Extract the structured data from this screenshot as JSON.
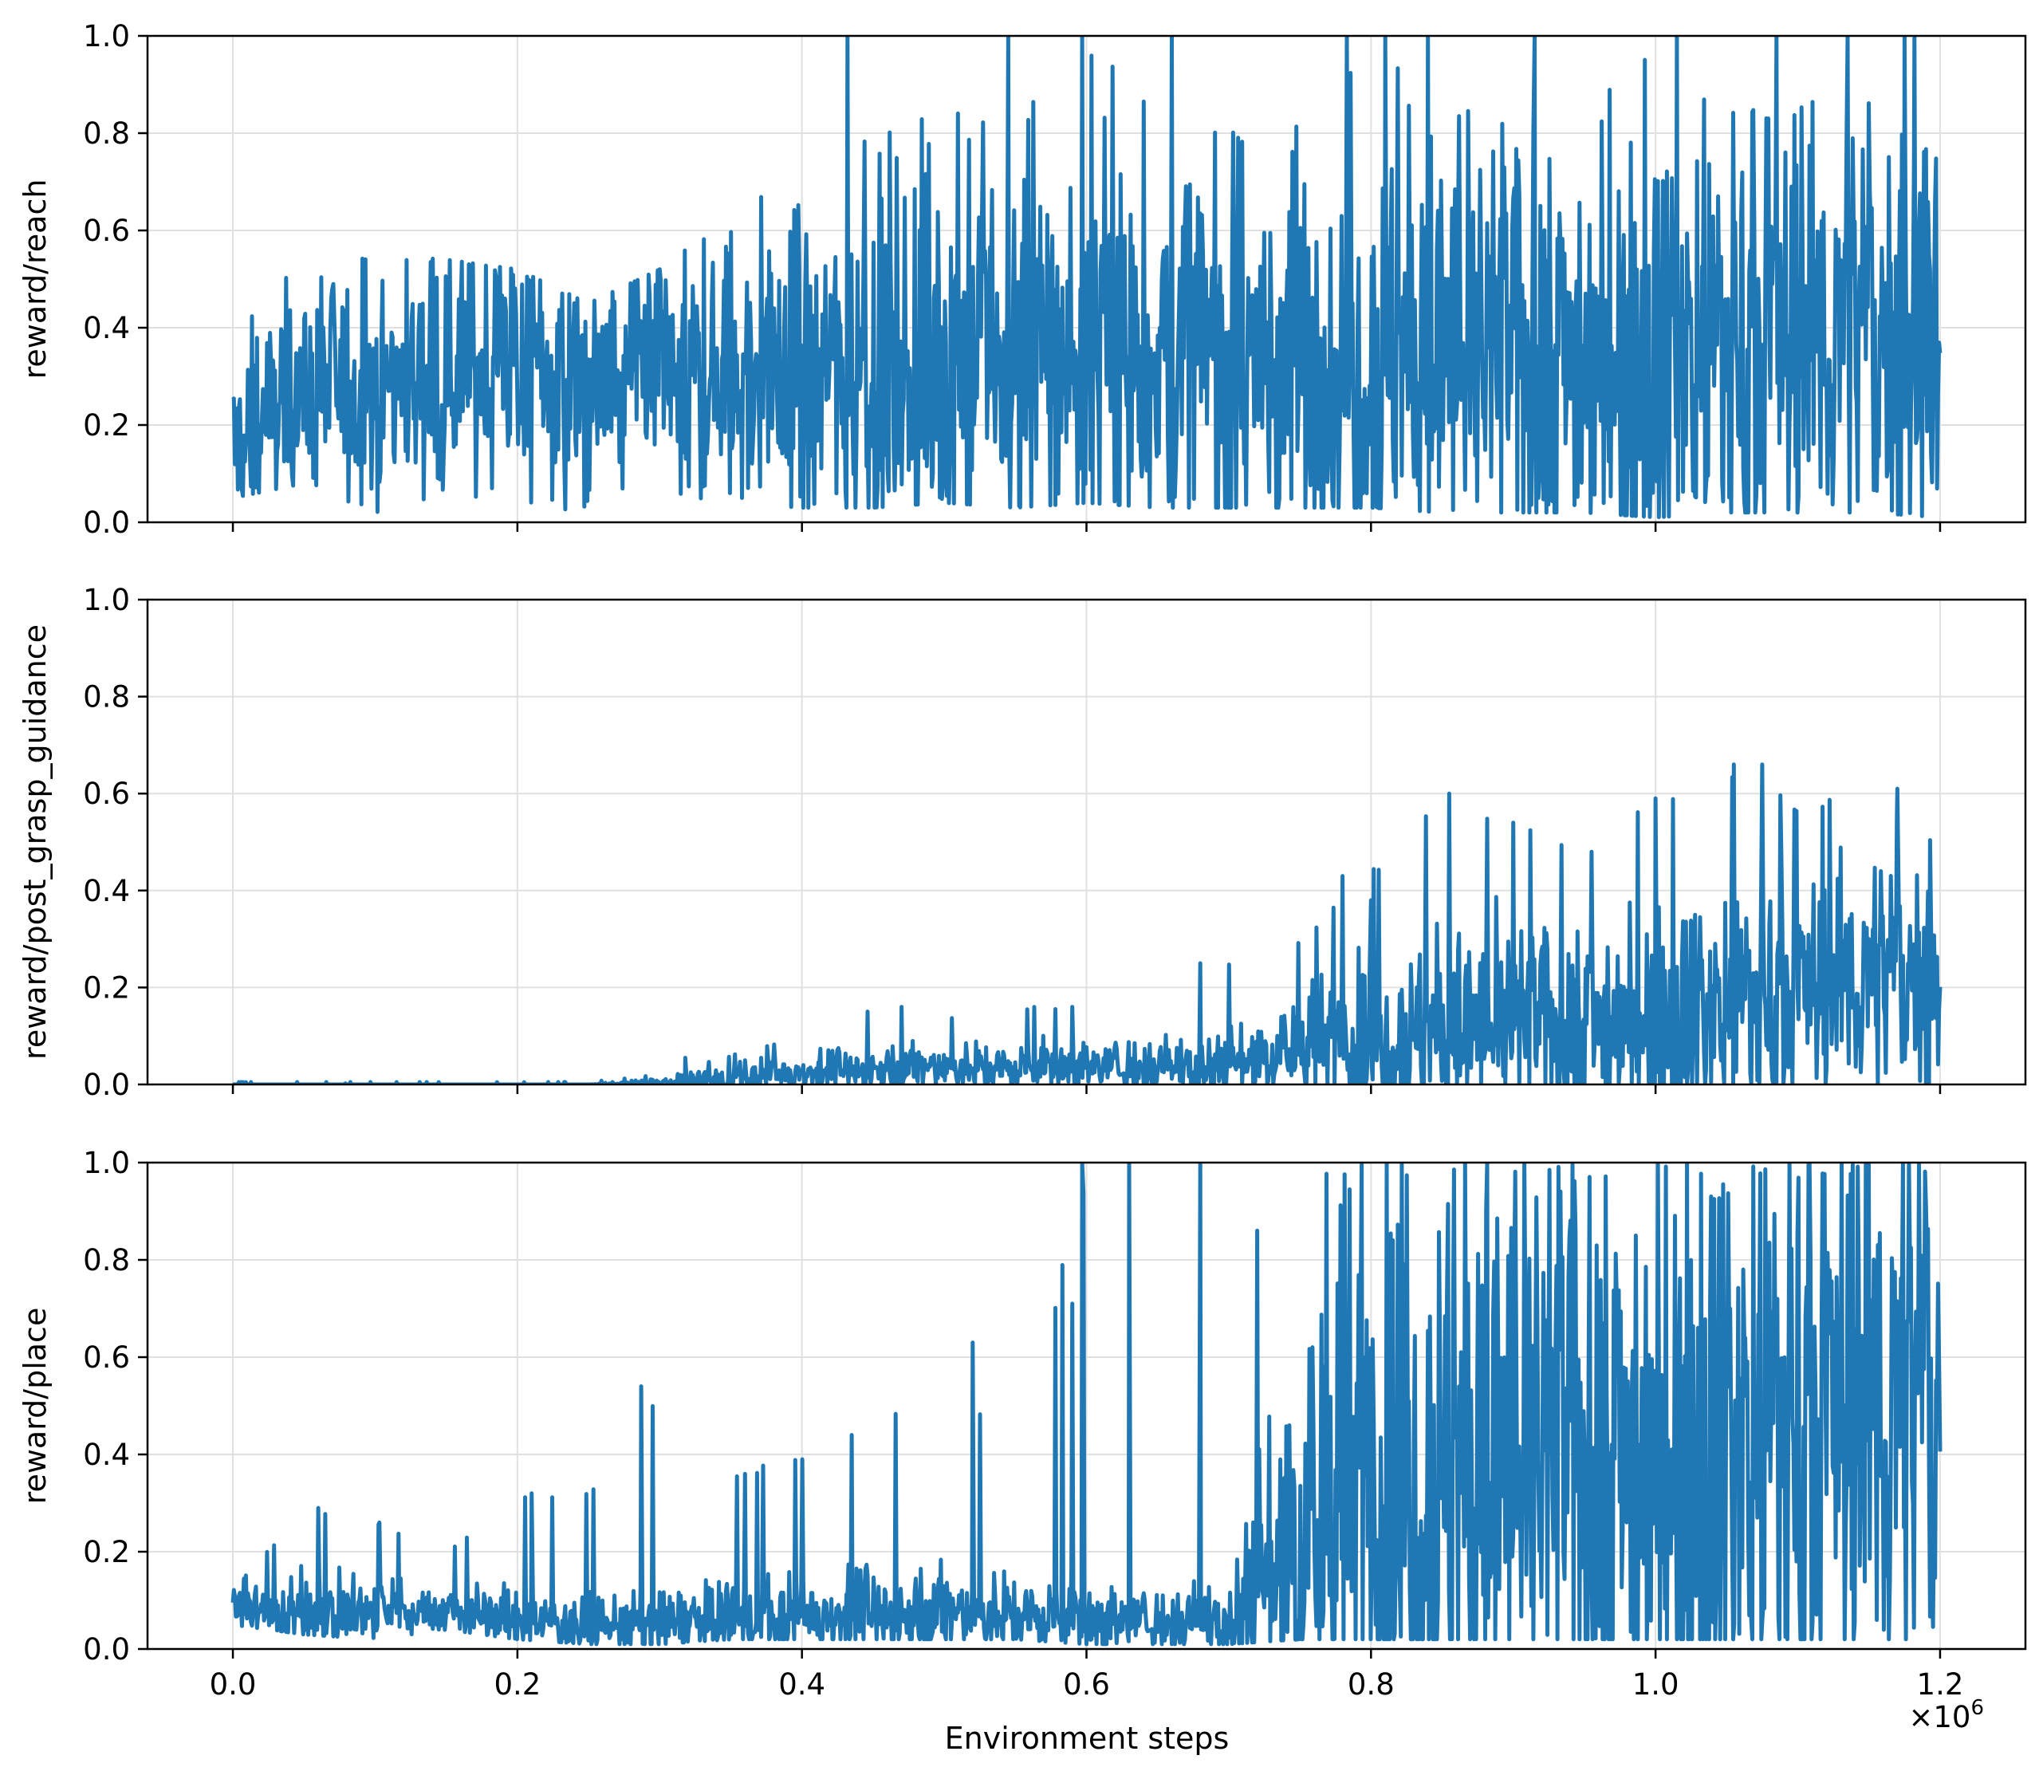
{
  "chart_data": {
    "type": "line",
    "xlabel": "Environment steps",
    "x_offset_label": "×10",
    "x_offset_exponent": "6",
    "xlim": [
      -0.06,
      1.26
    ],
    "x_ticks": [
      "0.0",
      "0.2",
      "0.4",
      "0.6",
      "0.8",
      "1.0",
      "1.2"
    ],
    "y_ticks": [
      "0.0",
      "0.2",
      "0.4",
      "0.6",
      "0.8",
      "1.0"
    ],
    "line_color": "#1f77b4",
    "grid": true,
    "subplots": [
      {
        "ylabel": "reward/reach",
        "ylim": [
          0,
          1
        ],
        "x": [
          0.0,
          0.05,
          0.1,
          0.15,
          0.2,
          0.25,
          0.3,
          0.35,
          0.4,
          0.45,
          0.5,
          0.55,
          0.6,
          0.65,
          0.7,
          0.75,
          0.8,
          0.85,
          0.9,
          0.95,
          1.0,
          1.05,
          1.1,
          1.15,
          1.2
        ],
        "mean": [
          0.15,
          0.29,
          0.28,
          0.32,
          0.33,
          0.28,
          0.29,
          0.3,
          0.31,
          0.32,
          0.33,
          0.33,
          0.34,
          0.35,
          0.34,
          0.35,
          0.35,
          0.36,
          0.35,
          0.36,
          0.36,
          0.37,
          0.38,
          0.4,
          0.4
        ],
        "min": [
          0.05,
          0.08,
          0.02,
          0.06,
          0.04,
          0.02,
          0.05,
          0.04,
          0.03,
          0.03,
          0.04,
          0.03,
          0.04,
          0.03,
          0.03,
          0.03,
          0.03,
          0.02,
          0.02,
          0.02,
          0.01,
          0.02,
          0.02,
          0.02,
          0.01
        ],
        "max": [
          0.48,
          0.51,
          0.55,
          0.54,
          0.52,
          0.45,
          0.52,
          0.63,
          0.73,
          0.8,
          0.85,
          0.82,
          1.0,
          0.86,
          0.8,
          0.82,
          1.0,
          0.86,
          0.82,
          0.84,
          1.0,
          0.84,
          0.86,
          0.88,
          0.74
        ],
        "volatility": [
          0.1,
          0.11,
          0.12,
          0.12,
          0.12,
          0.12,
          0.13,
          0.15,
          0.17,
          0.19,
          0.2,
          0.2,
          0.21,
          0.21,
          0.2,
          0.21,
          0.21,
          0.21,
          0.21,
          0.21,
          0.22,
          0.22,
          0.22,
          0.22,
          0.22
        ],
        "peaks": [
          [
            0.432,
            1.0
          ],
          [
            0.545,
            1.0
          ],
          [
            0.597,
            1.0
          ],
          [
            0.66,
            1.0
          ],
          [
            0.783,
            1.0
          ],
          [
            0.81,
            1.0
          ],
          [
            0.84,
            1.0
          ],
          [
            0.915,
            1.0
          ],
          [
            1.015,
            1.0
          ],
          [
            1.085,
            1.0
          ],
          [
            1.135,
            1.0
          ],
          [
            1.175,
            1.0
          ],
          [
            1.182,
            1.0
          ]
        ]
      },
      {
        "ylabel": "reward/post_grasp_guidance",
        "ylim": [
          0,
          1
        ],
        "x": [
          0.0,
          0.05,
          0.1,
          0.15,
          0.2,
          0.25,
          0.3,
          0.35,
          0.4,
          0.45,
          0.5,
          0.55,
          0.6,
          0.65,
          0.7,
          0.75,
          0.8,
          0.85,
          0.9,
          0.95,
          1.0,
          1.05,
          1.1,
          1.15,
          1.2
        ],
        "mean": [
          0.0,
          0.0,
          0.0,
          0.0,
          0.0,
          0.0,
          0.002,
          0.01,
          0.025,
          0.03,
          0.035,
          0.035,
          0.04,
          0.04,
          0.045,
          0.08,
          0.1,
          0.12,
          0.12,
          0.13,
          0.15,
          0.17,
          0.2,
          0.22,
          0.25
        ],
        "min": [
          0.0,
          0.0,
          0.0,
          0.0,
          0.0,
          0.0,
          0.0,
          0.0,
          0.0,
          0.0,
          0.0,
          0.0,
          0.0,
          0.0,
          0.0,
          0.0,
          0.0,
          0.0,
          0.0,
          0.0,
          0.0,
          0.0,
          0.0,
          0.0,
          0.0
        ],
        "max": [
          0.005,
          0.005,
          0.005,
          0.005,
          0.005,
          0.005,
          0.02,
          0.06,
          0.1,
          0.16,
          0.14,
          0.16,
          0.16,
          0.17,
          0.25,
          0.3,
          0.44,
          0.6,
          0.54,
          0.5,
          0.59,
          0.66,
          0.58,
          0.61,
          0.5
        ],
        "volatility": [
          0.0,
          0.0,
          0.0,
          0.0,
          0.0,
          0.0,
          0.005,
          0.015,
          0.02,
          0.025,
          0.025,
          0.025,
          0.025,
          0.03,
          0.04,
          0.06,
          0.08,
          0.09,
          0.1,
          0.1,
          0.11,
          0.12,
          0.12,
          0.12,
          0.12
        ],
        "peaks": [
          [
            0.318,
            0.055
          ],
          [
            0.47,
            0.16
          ],
          [
            0.59,
            0.16
          ],
          [
            0.68,
            0.25
          ],
          [
            0.78,
            0.43
          ],
          [
            0.8,
            0.38
          ],
          [
            0.855,
            0.6
          ],
          [
            0.9,
            0.54
          ],
          [
            0.955,
            0.48
          ],
          [
            1.0,
            0.59
          ],
          [
            1.055,
            0.66
          ],
          [
            1.075,
            0.66
          ],
          [
            1.17,
            0.61
          ]
        ]
      },
      {
        "ylabel": "reward/place",
        "ylim": [
          0,
          1
        ],
        "x": [
          0.0,
          0.05,
          0.1,
          0.15,
          0.2,
          0.25,
          0.3,
          0.35,
          0.4,
          0.45,
          0.5,
          0.55,
          0.6,
          0.65,
          0.7,
          0.75,
          0.8,
          0.85,
          0.9,
          0.95,
          1.0,
          1.05,
          1.1,
          1.15,
          1.2
        ],
        "mean": [
          0.09,
          0.07,
          0.08,
          0.08,
          0.06,
          0.05,
          0.05,
          0.06,
          0.07,
          0.07,
          0.07,
          0.07,
          0.06,
          0.06,
          0.06,
          0.25,
          0.35,
          0.38,
          0.4,
          0.4,
          0.42,
          0.45,
          0.48,
          0.5,
          0.52
        ],
        "min": [
          0.05,
          0.03,
          0.02,
          0.04,
          0.02,
          0.01,
          0.01,
          0.02,
          0.02,
          0.02,
          0.02,
          0.02,
          0.01,
          0.01,
          0.01,
          0.02,
          0.02,
          0.02,
          0.02,
          0.02,
          0.02,
          0.02,
          0.02,
          0.02,
          0.02
        ],
        "max": [
          0.12,
          0.29,
          0.26,
          0.2,
          0.32,
          0.32,
          0.54,
          0.36,
          0.4,
          0.44,
          0.63,
          0.38,
          1.0,
          0.22,
          0.18,
          1.0,
          1.0,
          1.0,
          1.0,
          1.0,
          1.0,
          1.0,
          1.0,
          1.0,
          1.0
        ],
        "volatility": [
          0.02,
          0.04,
          0.03,
          0.03,
          0.03,
          0.03,
          0.03,
          0.04,
          0.04,
          0.05,
          0.05,
          0.04,
          0.04,
          0.03,
          0.05,
          0.28,
          0.3,
          0.3,
          0.3,
          0.3,
          0.31,
          0.31,
          0.31,
          0.31,
          0.31
        ],
        "peaks": [
          [
            0.06,
            0.29
          ],
          [
            0.103,
            0.26
          ],
          [
            0.21,
            0.32
          ],
          [
            0.287,
            0.54
          ],
          [
            0.36,
            0.36
          ],
          [
            0.435,
            0.44
          ],
          [
            0.52,
            0.63
          ],
          [
            0.59,
            0.71
          ],
          [
            0.597,
            1.0
          ],
          [
            0.63,
            1.0
          ],
          [
            0.68,
            1.0
          ],
          [
            0.72,
            0.86
          ]
        ]
      }
    ]
  }
}
